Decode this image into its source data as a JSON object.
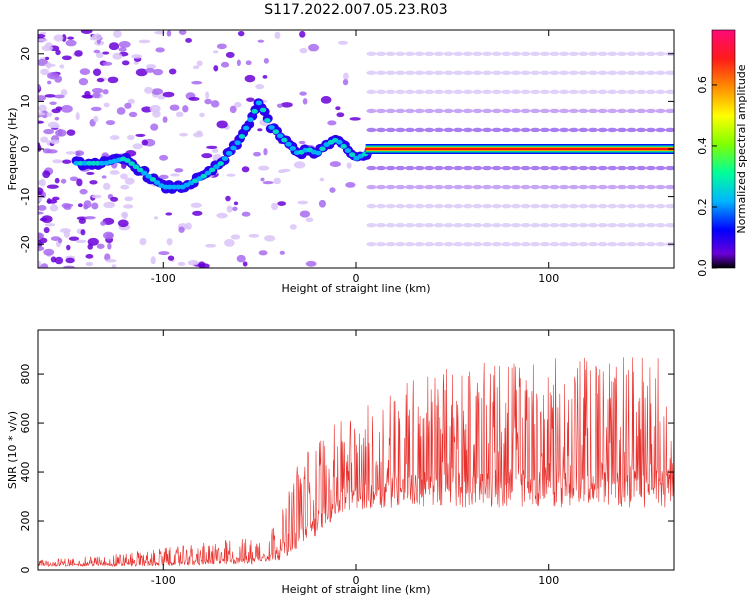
{
  "page": {
    "title": "S117.2022.007.05.23.R03"
  },
  "chart_data": [
    {
      "type": "heatmap",
      "xlabel": "Height of straight line (km)",
      "ylabel": "Frequency (Hz)",
      "xlim": [
        -165,
        165
      ],
      "ylim": [
        -25,
        25
      ],
      "xticks": [
        -100,
        0,
        100
      ],
      "yticks": [
        -20,
        -10,
        0,
        10,
        20
      ],
      "colorbar": {
        "label": "Normalized spectral amplitude",
        "range": [
          0,
          0.78
        ],
        "ticks": [
          0.0,
          0.2,
          0.4,
          0.6
        ],
        "colormap": [
          "#000000",
          "#7f00ff",
          "#0000ff",
          "#00c8ff",
          "#00ff80",
          "#80ff00",
          "#ffff00",
          "#ff8000",
          "#ff0000",
          "#ff0080"
        ]
      },
      "ridge": {
        "description_points_x": [
          -140,
          -130,
          -120,
          -110,
          -100,
          -90,
          -80,
          -70,
          -60,
          -50,
          -45,
          -40,
          -35,
          -30,
          -25,
          -20,
          -15,
          -10,
          -5,
          0,
          5,
          10,
          165
        ],
        "freq_hz": [
          -3,
          -3,
          -2,
          -5,
          -8,
          -8,
          -6,
          -3,
          2,
          10,
          5,
          3,
          1,
          -1,
          0,
          -1,
          1,
          2,
          0,
          -2,
          -1,
          0,
          0
        ]
      },
      "harmonic_lines_hz": [
        -20,
        -16,
        -12,
        -8,
        -4,
        4,
        8,
        12,
        16,
        20
      ]
    },
    {
      "type": "line",
      "xlabel": "Height of straight line (km)",
      "ylabel": "SNR (10 * v/v)",
      "xlim": [
        -165,
        165
      ],
      "ylim": [
        0,
        980
      ],
      "xticks": [
        -100,
        0,
        100
      ],
      "yticks": [
        0,
        200,
        400,
        600,
        800
      ],
      "color": "#e8302c",
      "envelope": {
        "x": [
          -165,
          -130,
          -100,
          -70,
          -50,
          -40,
          -30,
          -20,
          -10,
          0,
          10,
          20,
          30,
          50,
          80,
          120,
          165
        ],
        "baseline": [
          15,
          15,
          15,
          20,
          25,
          40,
          80,
          140,
          220,
          240,
          250,
          255,
          255,
          255,
          255,
          255,
          255
        ],
        "peak": [
          40,
          60,
          90,
          120,
          140,
          200,
          450,
          550,
          600,
          640,
          700,
          790,
          800,
          830,
          860,
          870,
          880
        ]
      }
    }
  ]
}
